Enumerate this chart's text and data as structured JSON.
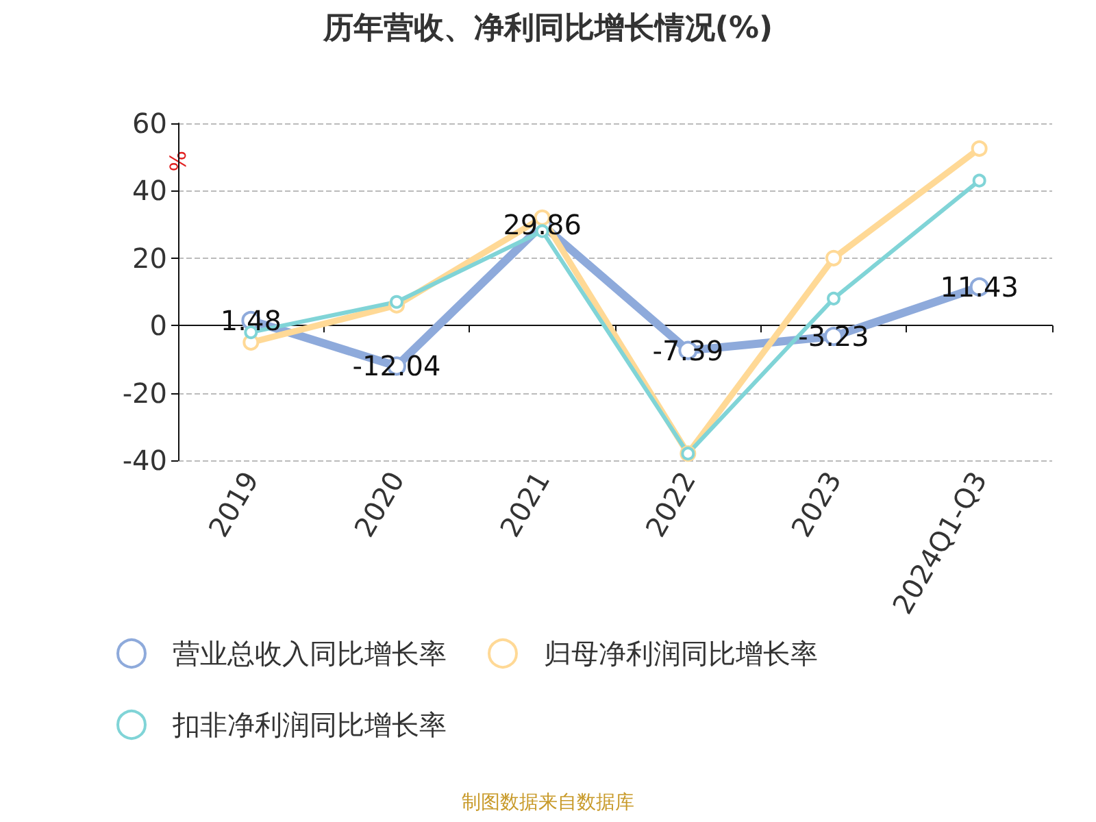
{
  "chart_data": {
    "type": "line",
    "title": "历年营收、净利同比增长情况(%)",
    "ylabel": "%",
    "categories": [
      "2019",
      "2020",
      "2021",
      "2022",
      "2023",
      "2024Q1-Q3"
    ],
    "series": [
      {
        "name": "营业总收入同比增长率",
        "color": "#8eaadb",
        "values": [
          1.48,
          -12.04,
          29.86,
          -7.39,
          -3.23,
          11.43
        ],
        "value_labels": [
          "1.48",
          "-12.04",
          "29.86",
          "-7.39",
          "-3.23",
          "11.43"
        ]
      },
      {
        "name": "归母净利润同比增长率",
        "color": "#ffd996",
        "values": [
          -5,
          6,
          32,
          -38,
          20,
          52.5
        ]
      },
      {
        "name": "扣非净利润同比增长率",
        "color": "#80d4d7",
        "values": [
          -2,
          7,
          28,
          -38,
          8,
          43
        ]
      }
    ],
    "ylim": [
      -40,
      60
    ],
    "yticks": [
      -40,
      -20,
      0,
      20,
      40,
      60
    ],
    "grid": "y",
    "legend": "bottom",
    "marker": "circle",
    "line_style": "solid",
    "annotations": [
      "制图数据来自数据库"
    ]
  }
}
